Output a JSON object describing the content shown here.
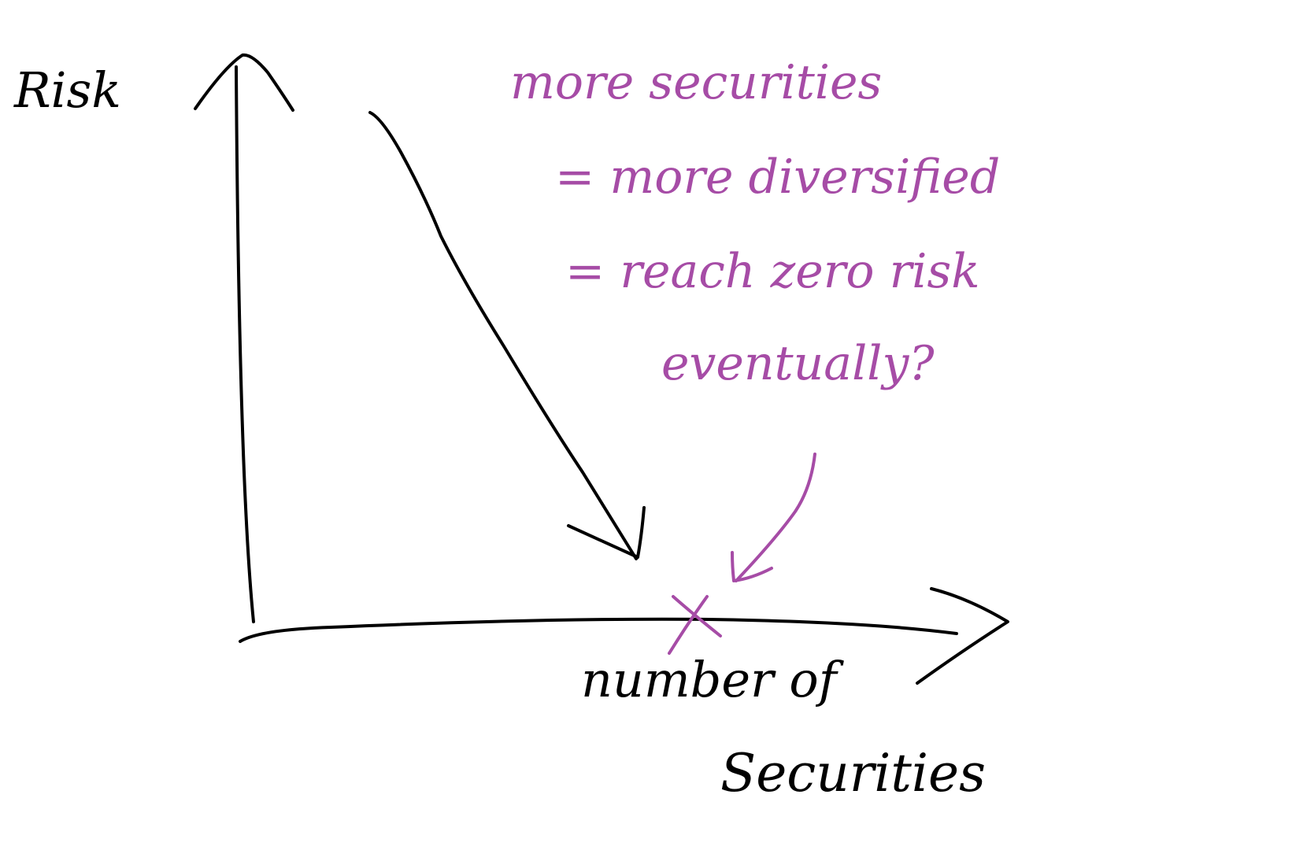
{
  "axes": {
    "y_label": "Risk",
    "x_label_line1": "number of",
    "x_label_line2": "Securities"
  },
  "annotation": {
    "line1": "more securities",
    "line2": "= more diversified",
    "line3": "= reach zero risk",
    "line4": "eventually?"
  },
  "marker": {
    "symbol": "x"
  },
  "colors": {
    "ink_black": "#000000",
    "ink_purple": "#a64ca6",
    "background": "#ffffff"
  }
}
